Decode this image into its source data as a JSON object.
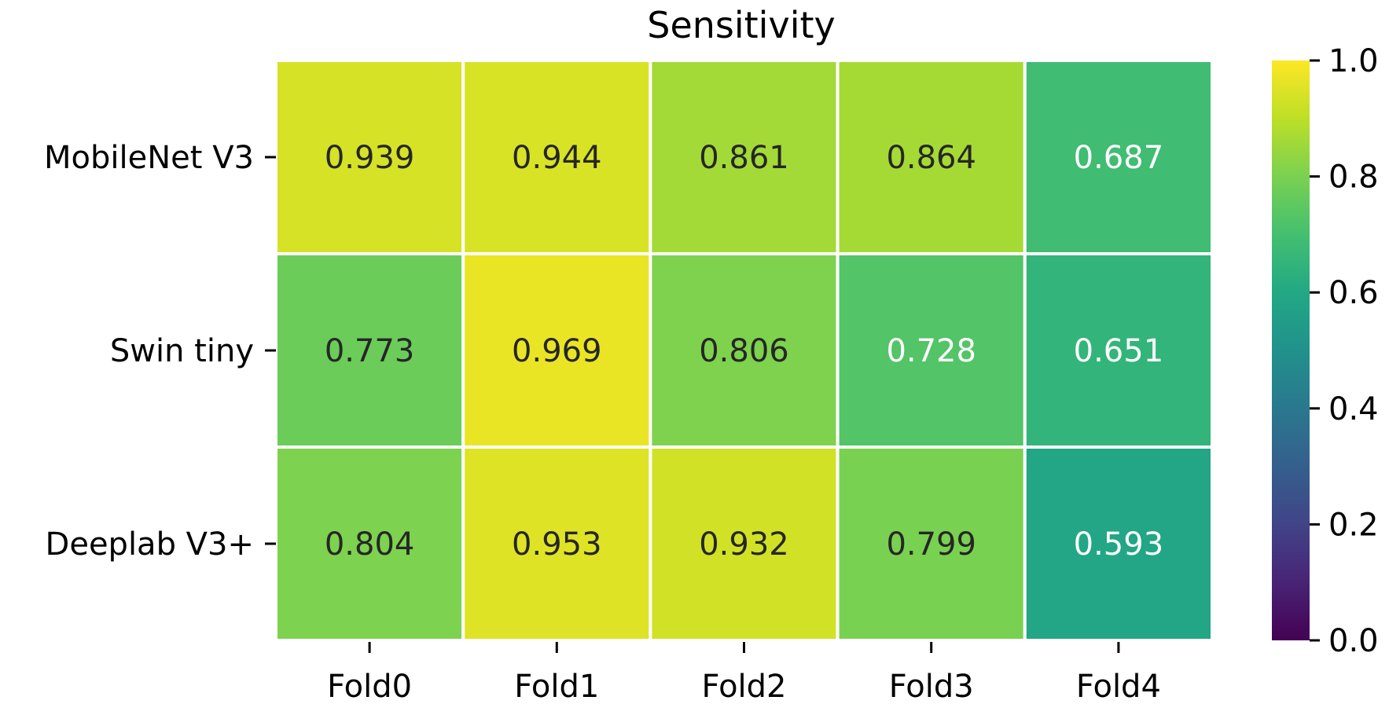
{
  "chart_data": {
    "type": "heatmap",
    "title": "Sensitivity",
    "xlabel": "",
    "ylabel": "",
    "x_categories": [
      "Fold0",
      "Fold1",
      "Fold2",
      "Fold3",
      "Fold4"
    ],
    "y_categories": [
      "MobileNet V3",
      "Swin tiny",
      "Deeplab V3+"
    ],
    "values": [
      [
        0.939,
        0.944,
        0.861,
        0.864,
        0.687
      ],
      [
        0.773,
        0.969,
        0.806,
        0.728,
        0.651
      ],
      [
        0.804,
        0.953,
        0.932,
        0.799,
        0.593
      ]
    ],
    "value_labels": [
      [
        "0.939",
        "0.944",
        "0.861",
        "0.864",
        "0.687"
      ],
      [
        "0.773",
        "0.969",
        "0.806",
        "0.728",
        "0.651"
      ],
      [
        "0.804",
        "0.953",
        "0.932",
        "0.799",
        "0.593"
      ]
    ],
    "colormap": "viridis",
    "vmin": 0.0,
    "vmax": 1.0,
    "colorbar_ticks": [
      "0.0",
      "0.2",
      "0.4",
      "0.6",
      "0.8",
      "1.0"
    ],
    "colorbar_tick_values": [
      0.0,
      0.2,
      0.4,
      0.6,
      0.8,
      1.0
    ],
    "cell_border_color": "#ffffff",
    "annotation_colors": {
      "dark": "#262626",
      "light": "#ffffff"
    }
  }
}
